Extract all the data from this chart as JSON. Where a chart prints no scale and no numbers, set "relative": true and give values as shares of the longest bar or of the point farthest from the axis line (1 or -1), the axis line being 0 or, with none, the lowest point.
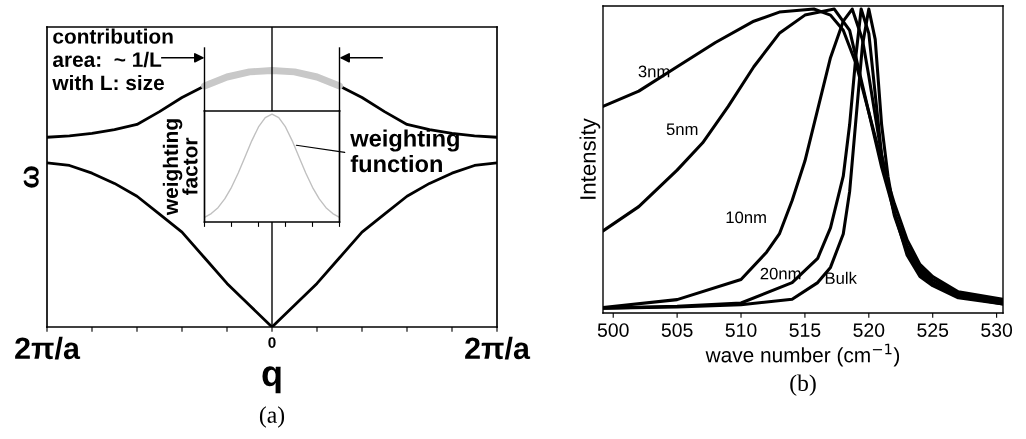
{
  "chart_data": [
    {
      "type": "line",
      "xlabel": "q",
      "ylabel": "ω",
      "relative": true,
      "categories": [
        "2π/a",
        null,
        null,
        null,
        null,
        null,
        null,
        null,
        null,
        null,
        "0",
        null,
        null,
        null,
        null,
        null,
        null,
        null,
        null,
        null,
        "2π/a"
      ],
      "series": [
        {
          "color": "#000000",
          "values": [
            0.74,
            0.745,
            0.755,
            0.77,
            0.79,
            0.84,
            0.895,
            0.94,
            null,
            null,
            null,
            null,
            null,
            0.94,
            0.895,
            0.84,
            0.79,
            0.77,
            0.755,
            0.745,
            0.74
          ]
        },
        {
          "color": "#c8c8c8",
          "values": [
            null,
            null,
            null,
            null,
            null,
            null,
            null,
            0.94,
            0.975,
            0.995,
            1,
            0.995,
            0.975,
            0.94,
            null,
            null,
            null,
            null,
            null,
            null,
            null
          ]
        },
        {
          "color": "#000000",
          "values": [
            0.64,
            0.63,
            0.6,
            0.56,
            0.51,
            0.44,
            0.37,
            0.27,
            0.17,
            0.085,
            0,
            0.085,
            0.17,
            0.27,
            0.37,
            0.44,
            0.51,
            0.56,
            0.6,
            0.63,
            0.64
          ]
        }
      ],
      "ref_lines": [
        {
          "axis": "x",
          "value": "0"
        }
      ],
      "annotations": [
        "contribution\narea:  ~ 1/L\nwith L: size",
        "(a)"
      ],
      "grid": false,
      "legend": false
    },
    {
      "type": "line",
      "ylabel": "weighting\nfactor",
      "relative": true,
      "categories": [
        null,
        null,
        null,
        null,
        null,
        null,
        null,
        null,
        null,
        null,
        null,
        null,
        null,
        null,
        null,
        null,
        null,
        null,
        null,
        null,
        null
      ],
      "series": [
        {
          "color": "#c0c0c0",
          "values": [
            0.043,
            0.078,
            0.133,
            0.214,
            0.322,
            0.455,
            0.604,
            0.753,
            0.882,
            0.969,
            1,
            0.969,
            0.882,
            0.753,
            0.604,
            0.455,
            0.322,
            0.214,
            0.133,
            0.078,
            0.043
          ]
        }
      ],
      "annotations": [
        "weighting\nfunction"
      ],
      "grid": false,
      "legend": false
    },
    {
      "type": "line",
      "xlabel": "wave number (cm$^{−1}$)",
      "ylabel": "Intensity",
      "relative": true,
      "xlim": [
        499.2,
        530.5
      ],
      "xticks": [
        500,
        505,
        510,
        515,
        520,
        525,
        530
      ],
      "series": [
        {
          "name": "3nm",
          "color": "#000000",
          "x": [
            499.2,
            502,
            505,
            508,
            511,
            513,
            515.7,
            517,
            518,
            519,
            520,
            521,
            522,
            523,
            524,
            525,
            527,
            530.5
          ],
          "values": [
            0.68,
            0.73,
            0.81,
            0.89,
            0.96,
            0.99,
            1,
            0.98,
            0.93,
            0.82,
            0.66,
            0.5,
            0.36,
            0.24,
            0.16,
            0.12,
            0.07,
            0.045
          ]
        },
        {
          "name": "5nm",
          "color": "#000000",
          "x": [
            499.2,
            502,
            505,
            507,
            509,
            511,
            513,
            515,
            517.3,
            518.5,
            519.5,
            520,
            521,
            522,
            523,
            524,
            525,
            527,
            530.5
          ],
          "values": [
            0.27,
            0.35,
            0.47,
            0.56,
            0.68,
            0.81,
            0.92,
            0.98,
            1,
            0.93,
            0.75,
            0.66,
            0.48,
            0.33,
            0.22,
            0.15,
            0.11,
            0.065,
            0.04
          ]
        },
        {
          "name": "10nm",
          "color": "#000000",
          "x": [
            499.2,
            505,
            510,
            512,
            513,
            514,
            515,
            516,
            517,
            518,
            518.7,
            519.5,
            520,
            521,
            522,
            523,
            524,
            525,
            527,
            530.5
          ],
          "values": [
            0.018,
            0.044,
            0.11,
            0.2,
            0.26,
            0.37,
            0.5,
            0.67,
            0.84,
            0.96,
            1,
            0.9,
            0.78,
            0.52,
            0.33,
            0.21,
            0.14,
            0.1,
            0.06,
            0.035
          ]
        },
        {
          "name": "20nm",
          "color": "#000000",
          "x": [
            499.2,
            505,
            510,
            514,
            516,
            517,
            518,
            518.5,
            519,
            519.4,
            520,
            520.5,
            521,
            522,
            523,
            524,
            525,
            527,
            530.5
          ],
          "values": [
            0.016,
            0.022,
            0.033,
            0.1,
            0.18,
            0.28,
            0.45,
            0.62,
            0.85,
            1,
            0.92,
            0.72,
            0.52,
            0.32,
            0.2,
            0.13,
            0.095,
            0.055,
            0.03
          ]
        },
        {
          "name": "Bulk",
          "color": "#000000",
          "x": [
            499.2,
            505,
            510,
            514,
            516,
            517,
            518,
            518.5,
            519,
            519.5,
            520,
            520.5,
            521,
            521.5,
            522,
            523,
            524,
            525,
            527,
            530.5
          ],
          "values": [
            0.016,
            0.02,
            0.027,
            0.045,
            0.1,
            0.15,
            0.26,
            0.4,
            0.64,
            0.88,
            1,
            0.9,
            0.62,
            0.45,
            0.33,
            0.19,
            0.12,
            0.09,
            0.05,
            0.03
          ]
        }
      ],
      "annotations": [
        "(b)"
      ],
      "grid": false,
      "legend": false
    }
  ]
}
